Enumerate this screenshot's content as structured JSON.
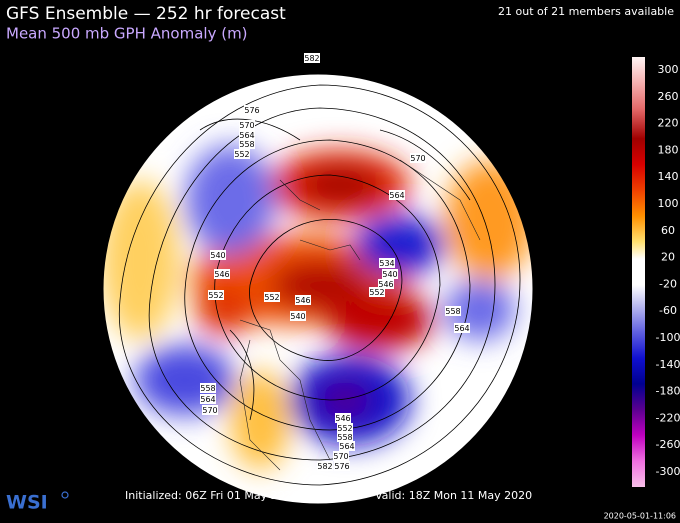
{
  "header": {
    "title": "GFS Ensemble — 252 hr forecast",
    "subtitle": "Mean 500 mb GPH Anomaly (m)",
    "members": "21 out of 21 members available"
  },
  "legend": {
    "ticks": [
      300,
      260,
      220,
      180,
      140,
      100,
      60,
      20,
      -20,
      -60,
      -100,
      -140,
      -180,
      -220,
      -260,
      -300
    ]
  },
  "contours": {
    "labels": [
      576,
      570,
      564,
      558,
      552,
      570,
      564,
      540,
      546,
      552,
      552,
      546,
      540,
      534,
      540,
      546,
      552,
      558,
      564,
      558,
      564,
      570,
      546,
      552,
      558,
      564,
      570,
      576,
      582,
      582
    ]
  },
  "footer": {
    "logo": "WSI",
    "initialized": "Initialized: 06Z Fri 01 May 2020",
    "valid": "Valid: 18Z Mon 11 May 2020",
    "timestamp": "2020-05-01-11:06"
  }
}
